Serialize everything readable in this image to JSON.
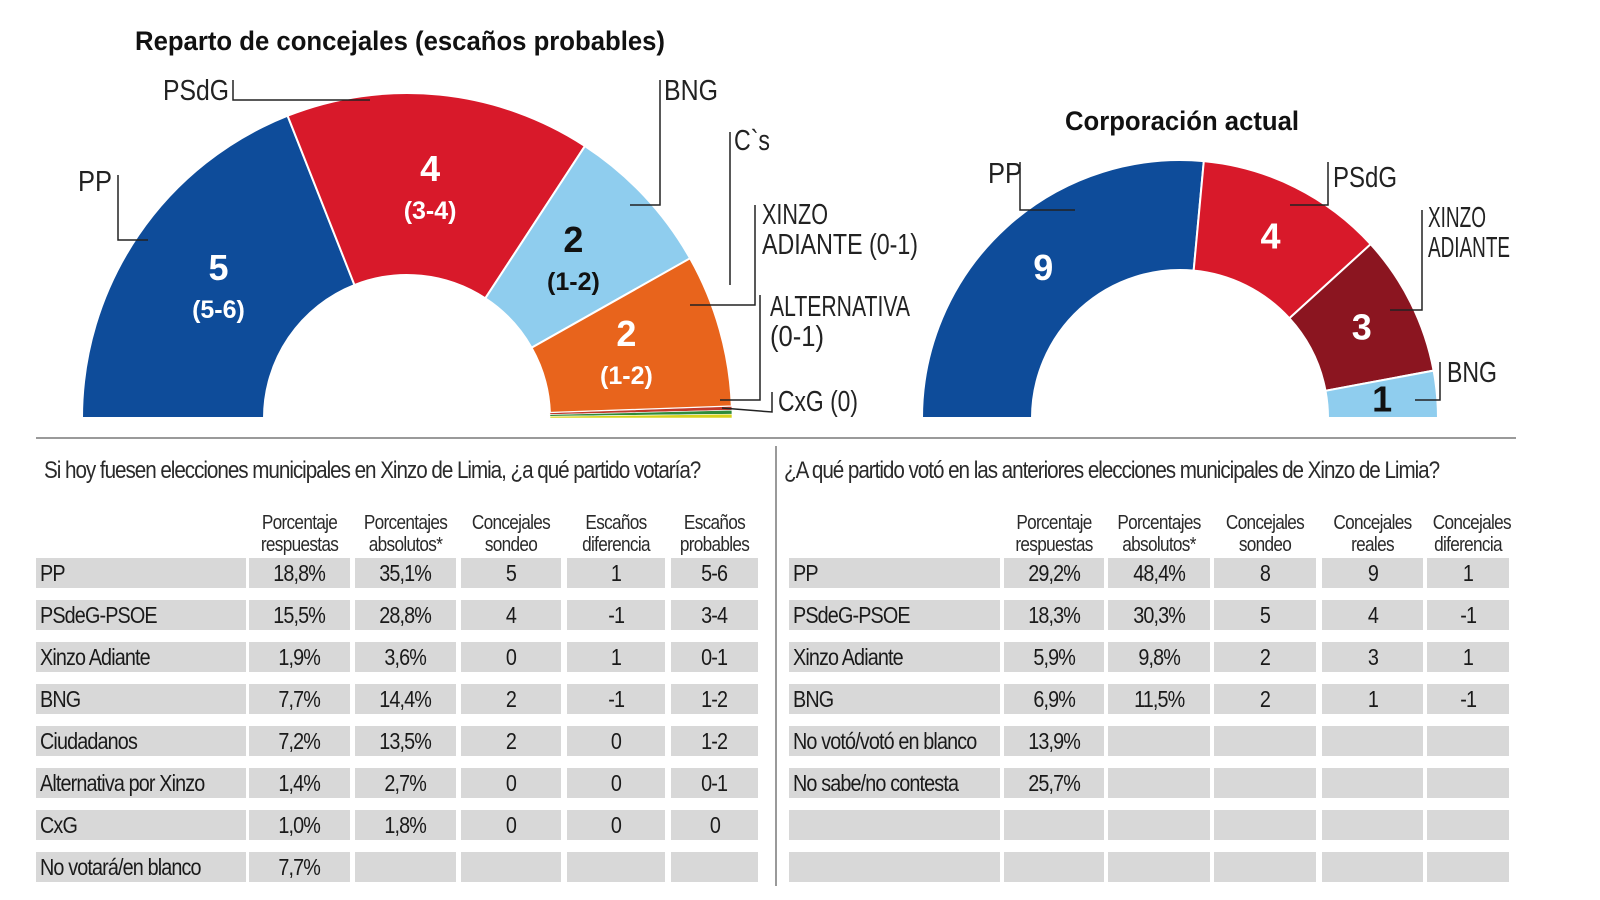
{
  "chart_data": [
    {
      "type": "pie",
      "subtype": "semicircle",
      "title": "Reparto de concejales (escaños probables)",
      "slices": [
        {
          "label": "PP",
          "value": 5,
          "value_label": "5",
          "range": "(5-6)",
          "color": "#0e4c9a"
        },
        {
          "label": "PSdG",
          "value": 4,
          "value_label": "4",
          "range": "(3-4)",
          "color": "#d8192a"
        },
        {
          "label": "BNG",
          "value": 2,
          "value_label": "2",
          "range": "(1-2)",
          "color": "#8fcdee"
        },
        {
          "label": "C`s",
          "value": 2,
          "value_label": "2",
          "range": "(1-2)",
          "color": "#e8641c"
        },
        {
          "label": "XINZO ADIANTE (0-1)",
          "value": 0.05,
          "value_label": "",
          "range": "",
          "color": "#c0392b"
        },
        {
          "label": "ALTERNATIVA (0-1)",
          "value": 0.05,
          "value_label": "",
          "range": "",
          "color": "#2e8b3a"
        },
        {
          "label": "CxG (0)",
          "value": 0.05,
          "value_label": "",
          "range": "",
          "color": "#d8d21c"
        }
      ]
    },
    {
      "type": "pie",
      "subtype": "semicircle",
      "title": "Corporación actual",
      "slices": [
        {
          "label": "PP",
          "value": 9,
          "value_label": "9",
          "color": "#0e4c9a"
        },
        {
          "label": "PSdG",
          "value": 4,
          "value_label": "4",
          "color": "#d8192a"
        },
        {
          "label": "XINZO ADIANTE",
          "value": 3,
          "value_label": "3",
          "color": "#8b1520"
        },
        {
          "label": "BNG",
          "value": 1,
          "value_label": "1",
          "color": "#8fcdee"
        }
      ]
    }
  ],
  "survey_table": {
    "question": "Si hoy fuesen elecciones municipales en Xinzo de Limia, ¿a qué partido votaría?",
    "headers": [
      [
        "Porcentaje",
        "respuestas"
      ],
      [
        "Porcentajes",
        "absolutos*"
      ],
      [
        "Concejales",
        "sondeo"
      ],
      [
        "Escaños",
        "diferencia"
      ],
      [
        "Escaños",
        "probables"
      ]
    ],
    "rows": [
      [
        "PP",
        "18,8%",
        "35,1%",
        "5",
        "1",
        "5-6"
      ],
      [
        "PSdeG-PSOE",
        "15,5%",
        "28,8%",
        "4",
        "-1",
        "3-4"
      ],
      [
        "Xinzo Adiante",
        "1,9%",
        "3,6%",
        "0",
        "1",
        "0-1"
      ],
      [
        "BNG",
        "7,7%",
        "14,4%",
        "2",
        "-1",
        "1-2"
      ],
      [
        "Ciudadanos",
        "7,2%",
        "13,5%",
        "2",
        "0",
        "1-2"
      ],
      [
        "Alternativa por Xinzo",
        "1,4%",
        "2,7%",
        "0",
        "0",
        "0-1"
      ],
      [
        "CxG",
        "1,0%",
        "1,8%",
        "0",
        "0",
        "0"
      ],
      [
        "No votará/en blanco",
        "7,7%",
        "",
        "",
        "",
        ""
      ]
    ]
  },
  "previous_table": {
    "question": "¿A qué partido votó en las anteriores elecciones municipales de Xinzo de Limia?",
    "headers": [
      [
        "Porcentaje",
        "respuestas"
      ],
      [
        "Porcentajes",
        "absolutos*"
      ],
      [
        "Concejales",
        "sondeo"
      ],
      [
        "Concejales",
        "reales"
      ],
      [
        "Concejales",
        "diferencia"
      ]
    ],
    "rows": [
      [
        "PP",
        "29,2%",
        "48,4%",
        "8",
        "9",
        "1"
      ],
      [
        "PSdeG-PSOE",
        "18,3%",
        "30,3%",
        "5",
        "4",
        "-1"
      ],
      [
        "Xinzo Adiante",
        "5,9%",
        "9,8%",
        "2",
        "3",
        "1"
      ],
      [
        "BNG",
        "6,9%",
        "11,5%",
        "2",
        "1",
        "-1"
      ],
      [
        "No votó/votó en blanco",
        "13,9%",
        "",
        "",
        "",
        ""
      ],
      [
        "No sabe/no contesta",
        "25,7%",
        "",
        "",
        "",
        ""
      ],
      [
        "",
        "",
        "",
        "",
        "",
        ""
      ],
      [
        "",
        "",
        "",
        "",
        "",
        ""
      ]
    ]
  }
}
